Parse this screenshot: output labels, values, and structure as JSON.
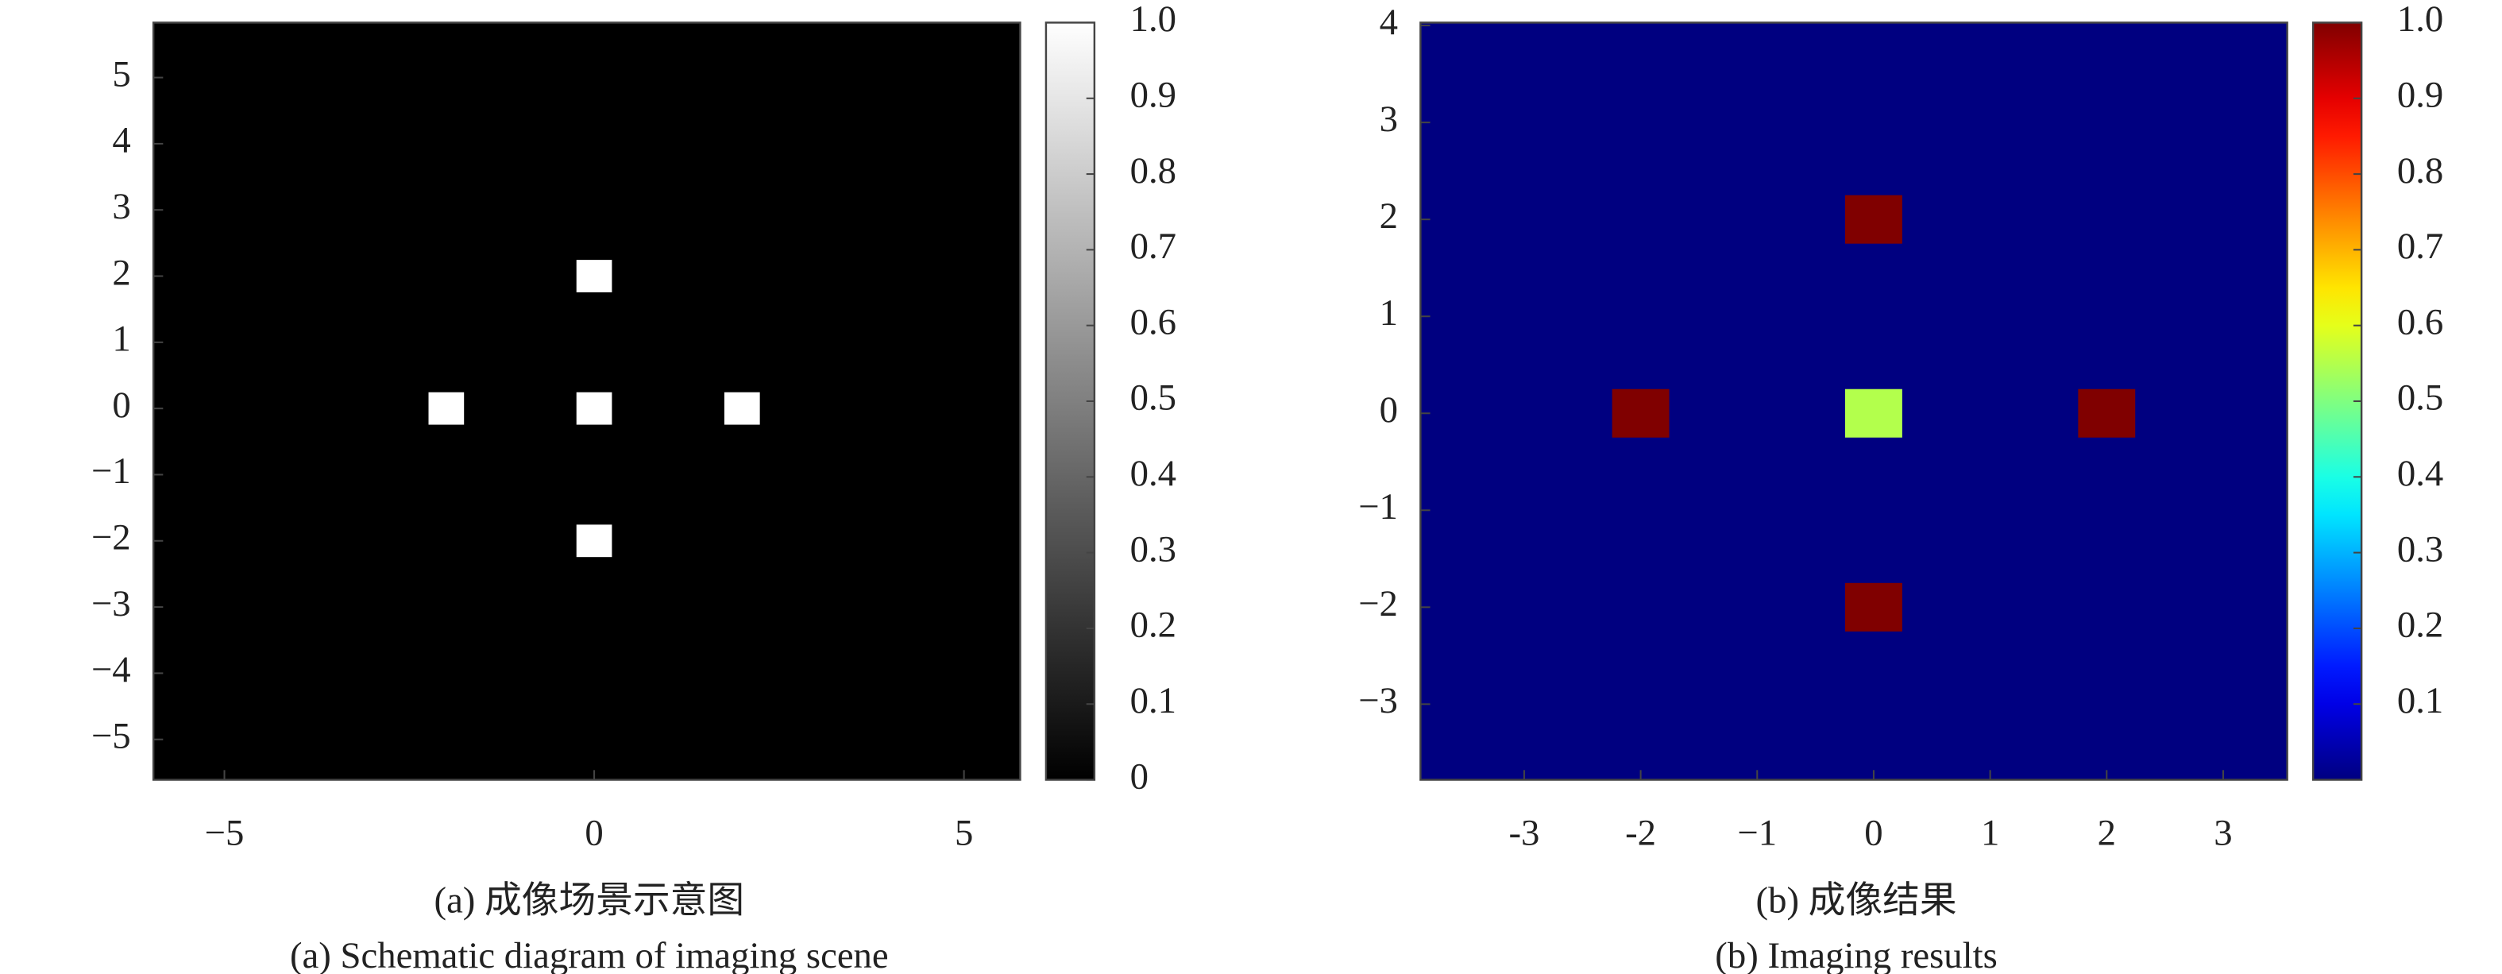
{
  "chart_data": [
    {
      "type": "heatmap",
      "colormap": "gray",
      "background": 0,
      "x": [
        0,
        -2,
        0,
        2,
        0
      ],
      "y": [
        2,
        0,
        0,
        0,
        -2
      ],
      "values": [
        1,
        1,
        1,
        1,
        1
      ],
      "cell_width": 0.48,
      "cell_height": 0.49,
      "xlim": [
        -5.96,
        5.76
      ],
      "ylim": [
        -5.61,
        5.83
      ],
      "xticks": [
        {
          "value": -5,
          "label": "−5"
        },
        0,
        5
      ],
      "yticks": [
        {
          "value": -5,
          "label": "−5"
        },
        {
          "value": -4,
          "label": "−4"
        },
        {
          "value": -3,
          "label": "−3"
        },
        {
          "value": -2,
          "label": "−2"
        },
        {
          "value": -1,
          "label": "−1"
        },
        0,
        1,
        2,
        3,
        4,
        5
      ],
      "clim": [
        0,
        1
      ],
      "cticks": [
        0,
        0.1,
        0.2,
        0.3,
        0.4,
        0.5,
        0.6,
        0.7,
        0.8,
        0.9,
        {
          "value": 1,
          "label": "1.0"
        }
      ],
      "caption": "(a) 成像场景示意图",
      "caption_en": "(a) Schematic diagram of imaging scene"
    },
    {
      "type": "heatmap",
      "colormap": "jet",
      "background": 0,
      "x": [
        0,
        -2,
        0,
        2,
        0
      ],
      "y": [
        2,
        0,
        0,
        0,
        -2
      ],
      "values": [
        1,
        1,
        0.55,
        1,
        1
      ],
      "cell_width": 0.49,
      "cell_height": 0.5,
      "xlim": [
        -3.89,
        3.55
      ],
      "ylim": [
        -3.78,
        4.03
      ],
      "xticks": [
        {
          "value": -3,
          "label": "-3"
        },
        {
          "value": -2,
          "label": "-2"
        },
        {
          "value": -1,
          "label": "−1"
        },
        0,
        1,
        2,
        3
      ],
      "yticks": [
        {
          "value": -3,
          "label": "−3"
        },
        {
          "value": -2,
          "label": "−2"
        },
        {
          "value": -1,
          "label": "−1"
        },
        0,
        1,
        2,
        3,
        4
      ],
      "clim": [
        0,
        1
      ],
      "cticks": [
        0.1,
        0.2,
        0.3,
        0.4,
        0.5,
        0.6,
        0.7,
        0.8,
        0.9,
        {
          "value": 1,
          "label": "1.0"
        }
      ],
      "caption": "(b) 成像结果",
      "caption_en": "(b) Imaging results"
    }
  ]
}
